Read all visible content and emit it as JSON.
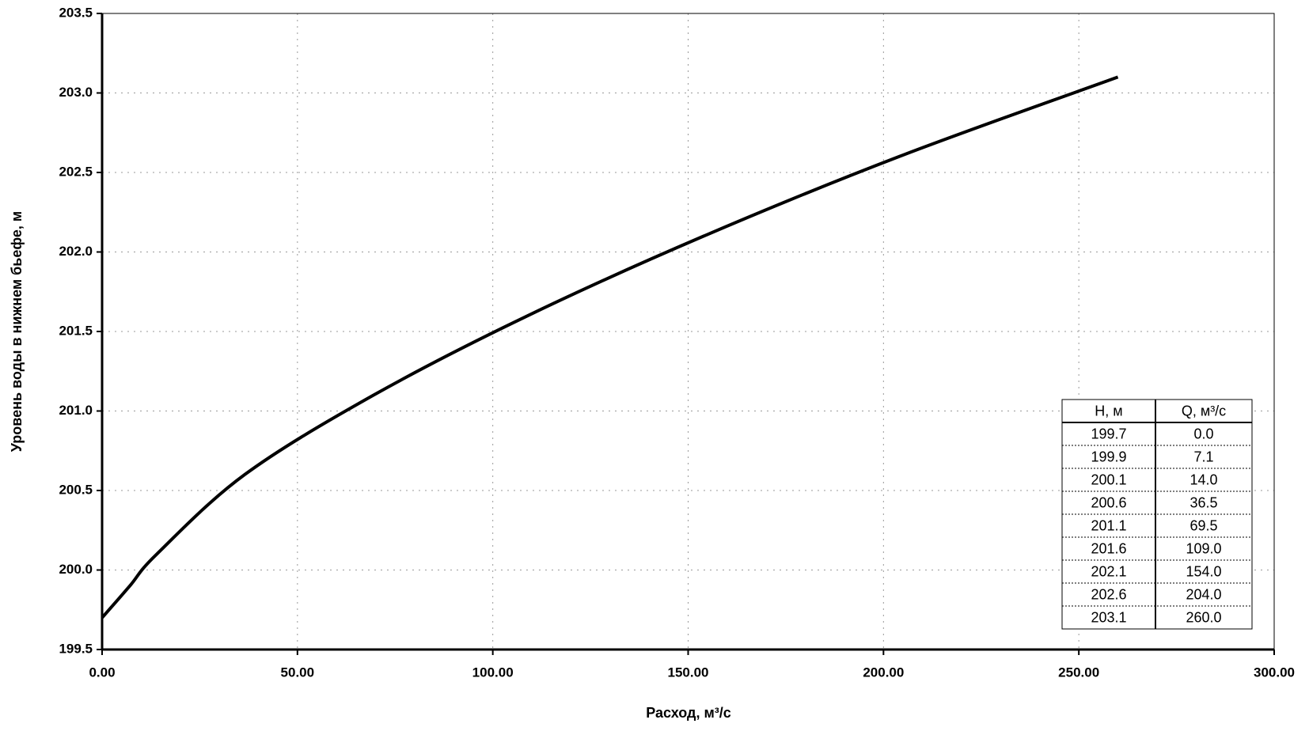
{
  "chart_data": {
    "type": "line",
    "x_label": "Расход, м³/с",
    "y_label": "Уровень воды в нижнем бьефе,  м",
    "x": [
      0,
      7.1,
      14,
      36.5,
      69.5,
      109,
      154,
      204,
      260
    ],
    "series": [
      {
        "color": "#000000",
        "values": [
          199.7,
          199.9,
          200.1,
          200.6,
          201.1,
          201.6,
          202.1,
          202.6,
          203.1
        ]
      }
    ],
    "xlim": [
      0,
      300
    ],
    "xticks": [
      {
        "value": 0,
        "label": "0.00"
      },
      {
        "value": 50,
        "label": "50.00"
      },
      {
        "value": 100,
        "label": "100.00"
      },
      {
        "value": 150,
        "label": "150.00"
      },
      {
        "value": 200,
        "label": "200.00"
      },
      {
        "value": 250,
        "label": "250.00"
      },
      {
        "value": 300,
        "label": "300.00"
      }
    ],
    "ylim": [
      199.5,
      203.5
    ],
    "yticks": [
      199.5,
      {
        "value": 200,
        "label": "200.0"
      },
      200.5,
      {
        "value": 201,
        "label": "201.0"
      },
      201.5,
      {
        "value": 202,
        "label": "202.0"
      },
      202.5,
      {
        "value": 203,
        "label": "203.0"
      },
      203.5
    ],
    "grid": true,
    "table": {
      "header": [
        "H, м",
        "Q, м³/с"
      ],
      "rows": [
        [
          "199.7",
          "0.0"
        ],
        [
          "199.9",
          "7.1"
        ],
        [
          "200.1",
          "14.0"
        ],
        [
          "200.6",
          "36.5"
        ],
        [
          "201.1",
          "69.5"
        ],
        [
          "201.6",
          "109.0"
        ],
        [
          "202.1",
          "154.0"
        ],
        [
          "202.6",
          "204.0"
        ],
        [
          "203.1",
          "260.0"
        ]
      ]
    }
  }
}
